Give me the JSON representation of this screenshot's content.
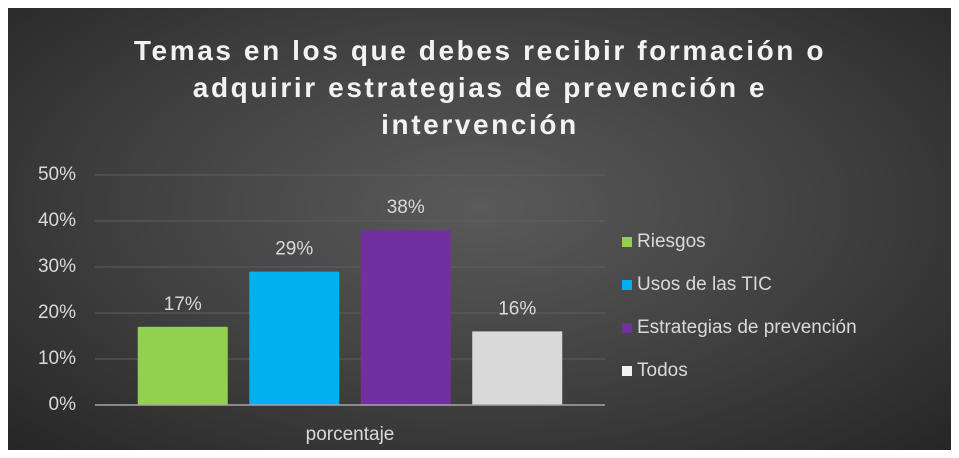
{
  "chart_data": {
    "type": "bar",
    "title": "Temas en los que debes recibir formación o adquirir estrategias de prevención e intervención",
    "categories": [
      "porcentaje"
    ],
    "series": [
      {
        "name": "Riesgos",
        "color": "#92d050",
        "values": [
          17
        ],
        "value_labels": [
          "17%"
        ]
      },
      {
        "name": "Usos de las TIC",
        "color": "#00b0f0",
        "values": [
          29
        ],
        "value_labels": [
          "29%"
        ]
      },
      {
        "name": "Estrategias de prevención",
        "color": "#7030a0",
        "values": [
          38
        ],
        "value_labels": [
          "38%"
        ]
      },
      {
        "name": "Todos",
        "color": "#d9d9d9",
        "values": [
          16
        ],
        "value_labels": [
          "16%"
        ]
      }
    ],
    "ylim": [
      0,
      50
    ],
    "yticks": [
      {
        "value": 0,
        "label": "0%"
      },
      {
        "value": 10,
        "label": "10%"
      },
      {
        "value": 20,
        "label": "20%"
      },
      {
        "value": 30,
        "label": "30%"
      },
      {
        "value": 40,
        "label": "40%"
      },
      {
        "value": 50,
        "label": "50%"
      }
    ],
    "grid": true,
    "legend": "right"
  }
}
